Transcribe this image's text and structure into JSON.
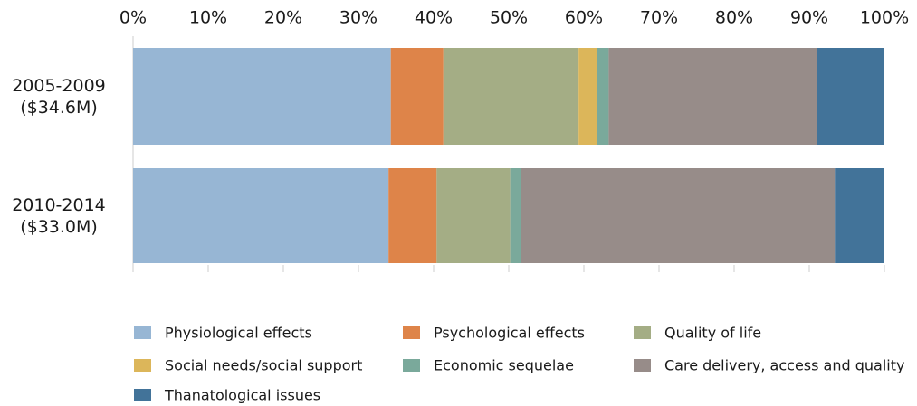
{
  "chart_data": {
    "type": "stacked-bar-horizontal",
    "categories": [
      "2005-2009 ($34.6M)",
      "2010-2014 ($33.0M)"
    ],
    "series": [
      {
        "name": "Physiological effects",
        "color": "#97b6d4",
        "values": [
          34.3,
          34.0
        ]
      },
      {
        "name": "Psychological effects",
        "color": "#de8449",
        "values": [
          7.0,
          6.4
        ]
      },
      {
        "name": "Quality of life",
        "color": "#a4ad85",
        "values": [
          18.0,
          9.8
        ]
      },
      {
        "name": "Social needs/social support",
        "color": "#dcb65a",
        "values": [
          2.5,
          0
        ]
      },
      {
        "name": "Economic sequelae",
        "color": "#7aa99b",
        "values": [
          1.5,
          1.4
        ]
      },
      {
        "name": "Care delivery, access and quality",
        "color": "#978c89",
        "values": [
          27.7,
          41.8
        ]
      },
      {
        "name": "Thanatological issues",
        "color": "#427399",
        "values": [
          9.0,
          6.6
        ]
      }
    ],
    "xlim": [
      0,
      100
    ],
    "xticks": [
      {
        "value": 0,
        "label": "0%"
      },
      {
        "value": 10,
        "label": "10%"
      },
      {
        "value": 20,
        "label": "20%"
      },
      {
        "value": 30,
        "label": "30%"
      },
      {
        "value": 40,
        "label": "40%"
      },
      {
        "value": 50,
        "label": "50%"
      },
      {
        "value": 60,
        "label": "60%"
      },
      {
        "value": 70,
        "label": "70%"
      },
      {
        "value": 80,
        "label": "80%"
      },
      {
        "value": 90,
        "label": "90%"
      },
      {
        "value": 100,
        "label": "100%"
      }
    ],
    "legend_position": "bottom"
  }
}
